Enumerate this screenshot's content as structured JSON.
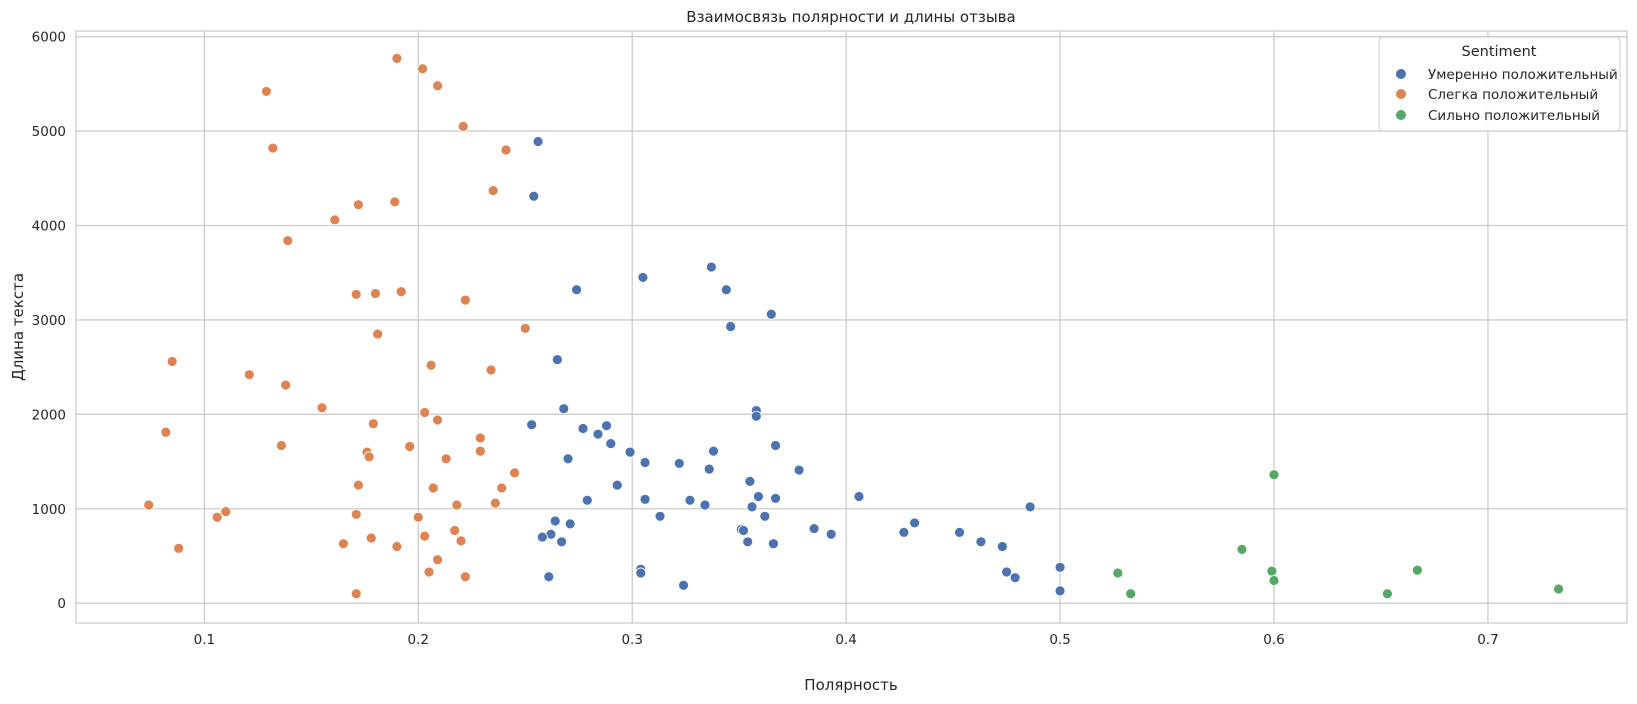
{
  "chart_data": {
    "type": "scatter",
    "title": "Взаимосвязь полярности и длины отзыва",
    "xlabel": "Полярность",
    "ylabel": "Длина текста",
    "xlim": [
      0.04,
      0.765
    ],
    "ylim": [
      -210,
      6060
    ],
    "xticks": [
      0.1,
      0.2,
      0.3,
      0.4,
      0.5,
      0.6,
      0.7
    ],
    "yticks": [
      0,
      1000,
      2000,
      3000,
      4000,
      5000,
      6000
    ],
    "xtick_labels": [
      "0.1",
      "0.2",
      "0.3",
      "0.4",
      "0.5",
      "0.6",
      "0.7"
    ],
    "ytick_labels": [
      "0",
      "1000",
      "2000",
      "3000",
      "4000",
      "5000",
      "6000"
    ],
    "grid": true,
    "legend": {
      "title": "Sentiment",
      "position": "top-right"
    },
    "series": [
      {
        "name": "Умеренно положительный",
        "color": "#4c72b0",
        "points": [
          [
            0.256,
            4890
          ],
          [
            0.254,
            4310
          ],
          [
            0.305,
            3450
          ],
          [
            0.274,
            3320
          ],
          [
            0.337,
            3560
          ],
          [
            0.344,
            3320
          ],
          [
            0.346,
            2930
          ],
          [
            0.365,
            3060
          ],
          [
            0.265,
            2580
          ],
          [
            0.253,
            1890
          ],
          [
            0.268,
            2060
          ],
          [
            0.277,
            1850
          ],
          [
            0.284,
            1790
          ],
          [
            0.288,
            1880
          ],
          [
            0.29,
            1690
          ],
          [
            0.299,
            1600
          ],
          [
            0.306,
            1490
          ],
          [
            0.322,
            1480
          ],
          [
            0.336,
            1420
          ],
          [
            0.338,
            1610
          ],
          [
            0.358,
            2040
          ],
          [
            0.358,
            1980
          ],
          [
            0.367,
            1670
          ],
          [
            0.378,
            1410
          ],
          [
            0.27,
            1530
          ],
          [
            0.293,
            1250
          ],
          [
            0.279,
            1090
          ],
          [
            0.306,
            1100
          ],
          [
            0.313,
            920
          ],
          [
            0.327,
            1090
          ],
          [
            0.334,
            1040
          ],
          [
            0.355,
            1290
          ],
          [
            0.359,
            1130
          ],
          [
            0.356,
            1020
          ],
          [
            0.367,
            1110
          ],
          [
            0.362,
            920
          ],
          [
            0.264,
            870
          ],
          [
            0.271,
            840
          ],
          [
            0.262,
            730
          ],
          [
            0.258,
            700
          ],
          [
            0.267,
            650
          ],
          [
            0.261,
            280
          ],
          [
            0.304,
            360
          ],
          [
            0.304,
            320
          ],
          [
            0.324,
            190
          ],
          [
            0.351,
            780
          ],
          [
            0.352,
            770
          ],
          [
            0.354,
            650
          ],
          [
            0.366,
            630
          ],
          [
            0.385,
            790
          ],
          [
            0.393,
            730
          ],
          [
            0.406,
            1130
          ],
          [
            0.427,
            750
          ],
          [
            0.432,
            850
          ],
          [
            0.453,
            750
          ],
          [
            0.463,
            650
          ],
          [
            0.473,
            600
          ],
          [
            0.475,
            330
          ],
          [
            0.479,
            270
          ],
          [
            0.486,
            1020
          ],
          [
            0.5,
            380
          ],
          [
            0.5,
            130
          ]
        ]
      },
      {
        "name": "Слегка положительный",
        "color": "#dd8452",
        "points": [
          [
            0.19,
            5770
          ],
          [
            0.202,
            5660
          ],
          [
            0.209,
            5480
          ],
          [
            0.129,
            5420
          ],
          [
            0.221,
            5050
          ],
          [
            0.241,
            4800
          ],
          [
            0.132,
            4820
          ],
          [
            0.235,
            4370
          ],
          [
            0.189,
            4250
          ],
          [
            0.172,
            4220
          ],
          [
            0.161,
            4060
          ],
          [
            0.139,
            3840
          ],
          [
            0.171,
            3270
          ],
          [
            0.18,
            3280
          ],
          [
            0.192,
            3300
          ],
          [
            0.222,
            3210
          ],
          [
            0.25,
            2910
          ],
          [
            0.181,
            2850
          ],
          [
            0.085,
            2560
          ],
          [
            0.206,
            2520
          ],
          [
            0.234,
            2470
          ],
          [
            0.121,
            2420
          ],
          [
            0.138,
            2310
          ],
          [
            0.155,
            2070
          ],
          [
            0.203,
            2020
          ],
          [
            0.209,
            1940
          ],
          [
            0.179,
            1900
          ],
          [
            0.082,
            1810
          ],
          [
            0.229,
            1750
          ],
          [
            0.136,
            1670
          ],
          [
            0.196,
            1660
          ],
          [
            0.229,
            1610
          ],
          [
            0.176,
            1600
          ],
          [
            0.177,
            1550
          ],
          [
            0.213,
            1530
          ],
          [
            0.245,
            1380
          ],
          [
            0.172,
            1250
          ],
          [
            0.207,
            1220
          ],
          [
            0.239,
            1220
          ],
          [
            0.236,
            1060
          ],
          [
            0.218,
            1040
          ],
          [
            0.074,
            1040
          ],
          [
            0.11,
            970
          ],
          [
            0.106,
            910
          ],
          [
            0.171,
            940
          ],
          [
            0.2,
            910
          ],
          [
            0.217,
            770
          ],
          [
            0.203,
            710
          ],
          [
            0.178,
            690
          ],
          [
            0.22,
            660
          ],
          [
            0.165,
            630
          ],
          [
            0.19,
            600
          ],
          [
            0.088,
            580
          ],
          [
            0.209,
            460
          ],
          [
            0.205,
            330
          ],
          [
            0.222,
            280
          ],
          [
            0.171,
            100
          ]
        ]
      },
      {
        "name": "Сильно положительный",
        "color": "#55a868",
        "points": [
          [
            0.6,
            1360
          ],
          [
            0.585,
            570
          ],
          [
            0.599,
            340
          ],
          [
            0.6,
            240
          ],
          [
            0.527,
            320
          ],
          [
            0.533,
            100
          ],
          [
            0.653,
            100
          ],
          [
            0.667,
            350
          ],
          [
            0.733,
            150
          ]
        ]
      }
    ]
  }
}
